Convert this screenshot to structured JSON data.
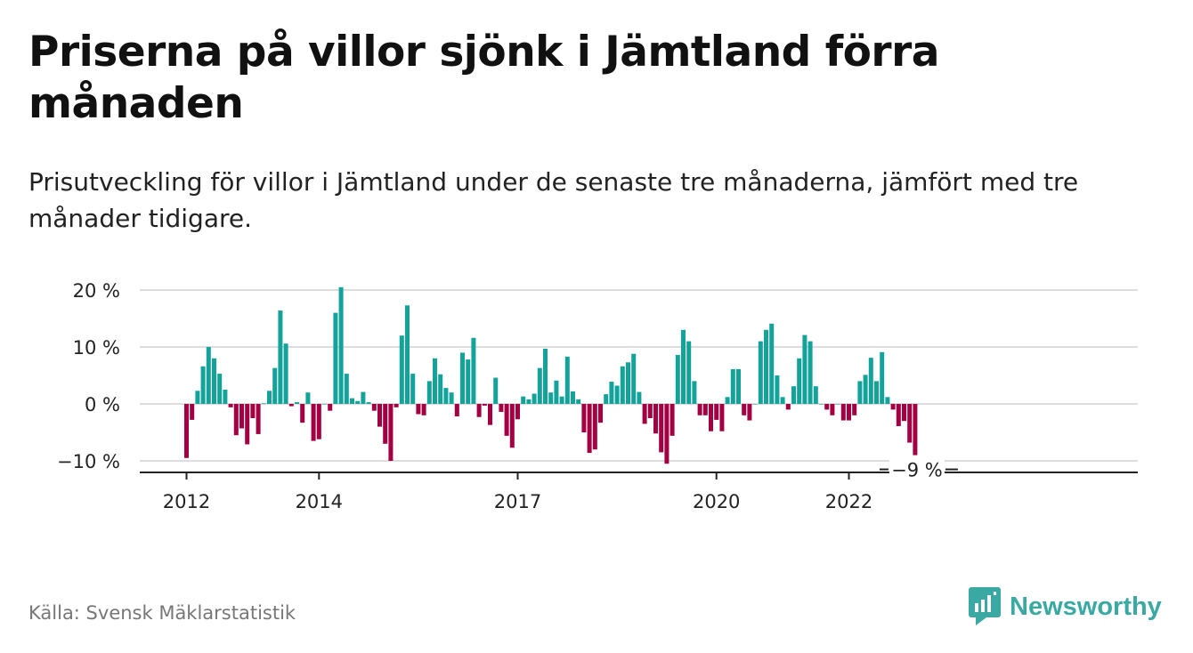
{
  "title": "Priserna på villor sjönk i Jämtland förra månaden",
  "subtitle": "Prisutveckling för villor i Jämtland under de senaste tre månaderna, jämfört med tre månader tidigare.",
  "source": "Källa: Svensk Mäklarstatistik",
  "brand": "Newsworthy",
  "colors": {
    "positive": "#14a39a",
    "negative": "#a20042",
    "grid": "#dddddd",
    "axis": "#222222",
    "brand": "#3aa9a3"
  },
  "chart_data": {
    "type": "bar",
    "title": "Priserna på villor sjönk i Jämtland förra månaden",
    "subtitle": "Prisutveckling för villor i Jämtland under de senaste tre månaderna, jämfört med tre månader tidigare.",
    "start": "2012-01",
    "y_ticks": [
      {
        "value": 20,
        "label": "20 %"
      },
      {
        "value": 10,
        "label": "10 %"
      },
      {
        "value": 0,
        "label": "0 %"
      },
      {
        "value": -10,
        "label": "−10 %"
      }
    ],
    "x_ticks": [
      {
        "label": "2012",
        "index": 0
      },
      {
        "label": "2014",
        "index": 24
      },
      {
        "label": "2017",
        "index": 60
      },
      {
        "label": "2020",
        "index": 96
      },
      {
        "label": "2022",
        "index": 120
      }
    ],
    "ylim": [
      -11,
      21
    ],
    "grid": true,
    "end_label": "−9 %",
    "values": [
      -9.5,
      -2.8,
      2.3,
      6.6,
      10.0,
      8.0,
      5.3,
      2.5,
      -0.6,
      -5.5,
      -4.3,
      -7.1,
      -2.5,
      -5.3,
      0.1,
      2.3,
      6.3,
      16.4,
      10.6,
      -0.4,
      0.3,
      -3.3,
      2.0,
      -6.5,
      -6.2,
      0.0,
      -1.2,
      16.0,
      20.5,
      5.3,
      1.0,
      0.5,
      2.1,
      0.3,
      -1.2,
      -4.0,
      -7.0,
      -10.0,
      -0.6,
      12.0,
      17.3,
      5.3,
      -1.8,
      -2.0,
      4.0,
      8.0,
      5.2,
      2.8,
      2.0,
      -2.2,
      9.0,
      7.8,
      11.6,
      -2.3,
      -0.3,
      -3.7,
      4.6,
      -1.4,
      -5.6,
      -7.7,
      -2.7,
      1.3,
      0.8,
      1.8,
      6.3,
      9.7,
      2.0,
      4.1,
      1.3,
      8.3,
      2.2,
      0.8,
      -5.0,
      -8.6,
      -8.0,
      -3.3,
      1.7,
      3.9,
      3.2,
      6.6,
      7.3,
      8.8,
      2.1,
      -3.5,
      -2.5,
      -5.2,
      -8.5,
      -10.5,
      -5.6,
      8.6,
      13.0,
      11.0,
      4.0,
      -2.0,
      -2.0,
      -4.8,
      -2.8,
      -4.8,
      1.2,
      6.1,
      6.1,
      -2.0,
      -2.9,
      0.0,
      11.0,
      13.0,
      14.1,
      5.0,
      1.2,
      -1.0,
      3.1,
      8.0,
      12.1,
      11.0,
      3.1,
      0.0,
      -1.0,
      -2.0,
      0.0,
      -2.9,
      -2.9,
      -2.0,
      4.0,
      5.1,
      8.1,
      4.0,
      9.1,
      1.2,
      -1.0,
      -3.9,
      -3.0,
      -6.8,
      -9.0
    ]
  }
}
